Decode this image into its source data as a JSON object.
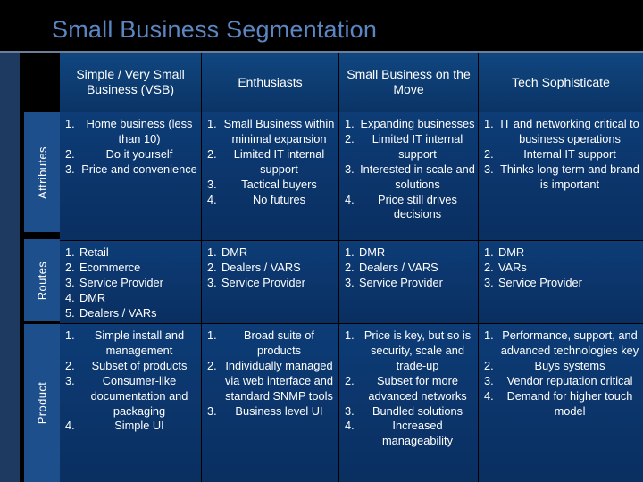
{
  "title": "Small Business Segmentation",
  "row_labels": {
    "attributes": "Attributes",
    "routes": "Routes",
    "product": "Product"
  },
  "columns": [
    "Simple / Very Small Business (VSB)",
    "Enthusiasts",
    "Small Business on the Move",
    "Tech Sophisticate"
  ],
  "rows": {
    "attributes": [
      [
        "1. Home business (less than 10)",
        "2. Do it yourself",
        "3. Price and convenience"
      ],
      [
        "1. Small Business within minimal expansion",
        "2. Limited IT internal support",
        "3. Tactical buyers",
        "4. No futures"
      ],
      [
        "1. Expanding businesses",
        "2. Limited IT internal support",
        "3. Interested in scale and solutions",
        "4. Price still drives decisions"
      ],
      [
        "1. IT and networking critical to business operations",
        "2. Internal IT support",
        "3. Thinks long term and brand is important"
      ]
    ],
    "routes": [
      [
        "1. Retail",
        "2. Ecommerce",
        "3. Service Provider",
        "4. DMR",
        "5. Dealers / VARs"
      ],
      [
        "1. DMR",
        "2. Dealers / VARS",
        "3. Service Provider"
      ],
      [
        "1. DMR",
        "2. Dealers / VARS",
        "3. Service Provider"
      ],
      [
        "1. DMR",
        "2. VARs",
        "3. Service Provider"
      ]
    ],
    "product": [
      [
        "1. Simple install and management",
        "2. Subset of products",
        "3. Consumer-like documentation and packaging",
        "4. Simple UI"
      ],
      [
        "1. Broad suite of products",
        "2. Individually managed via web interface and standard SNMP tools",
        "3. Business level UI"
      ],
      [
        "1. Price is key, but so is security, scale and trade-up",
        "2. Subset for more advanced networks",
        "3. Bundled solutions",
        "4. Increased manageability"
      ],
      [
        "1. Performance, support, and advanced technologies key",
        "2. Buys systems",
        "3. Vendor reputation critical",
        "4. Demand for higher touch model"
      ]
    ]
  }
}
